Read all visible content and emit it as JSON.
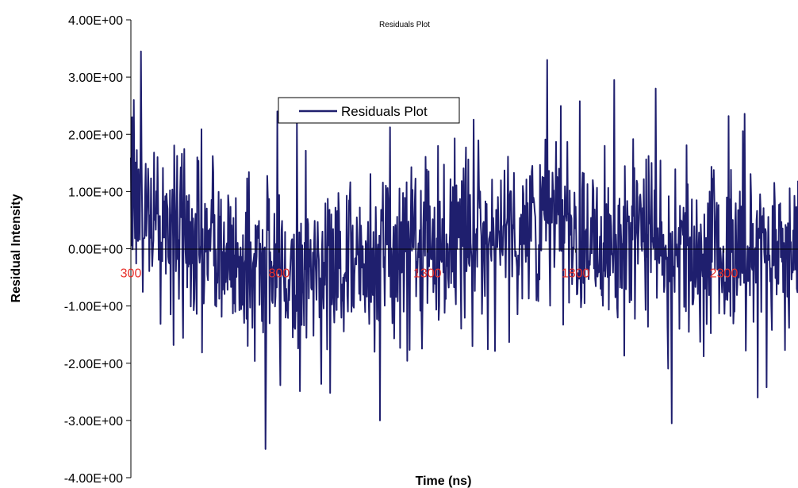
{
  "chart_data": {
    "type": "line",
    "title": "Residuals Plot",
    "xlabel": "Time (ns)",
    "ylabel": "Residual Intensity",
    "xlim": [
      300,
      2550
    ],
    "ylim": [
      -4,
      4
    ],
    "x_ticks": [
      300,
      800,
      1300,
      1800,
      2300
    ],
    "x_tick_labels": [
      "300",
      "800",
      "1300",
      "1800",
      "2300"
    ],
    "y_ticks": [
      -4,
      -3,
      -2,
      -1,
      0,
      1,
      2,
      3,
      4
    ],
    "y_tick_labels": [
      "-4.00E+00",
      "-3.00E+00",
      "-2.00E+00",
      "-1.00E+00",
      "0.00E+00",
      "1.00E+00",
      "2.00E+00",
      "3.00E+00",
      "4.00E+00"
    ],
    "grid": false,
    "legend": "upper-left-center",
    "colors": {
      "series": "#1f1f6e",
      "x_tick_labels": "#e8302a",
      "axes": "#000000"
    },
    "series": [
      {
        "name": "Residuals Plot",
        "x_start": 300,
        "x_step": 2,
        "notable_points": [
          {
            "x": 304,
            "y": 2.3
          },
          {
            "x": 310,
            "y": 2.6
          },
          {
            "x": 335,
            "y": 3.45
          },
          {
            "x": 795,
            "y": 2.4
          },
          {
            "x": 755,
            "y": -3.5
          },
          {
            "x": 1140,
            "y": -3.0
          },
          {
            "x": 1705,
            "y": 3.3
          },
          {
            "x": 1930,
            "y": 2.95
          },
          {
            "x": 2070,
            "y": 2.8
          },
          {
            "x": 2125,
            "y": -3.05
          },
          {
            "x": 2415,
            "y": -2.6
          }
        ]
      }
    ]
  }
}
